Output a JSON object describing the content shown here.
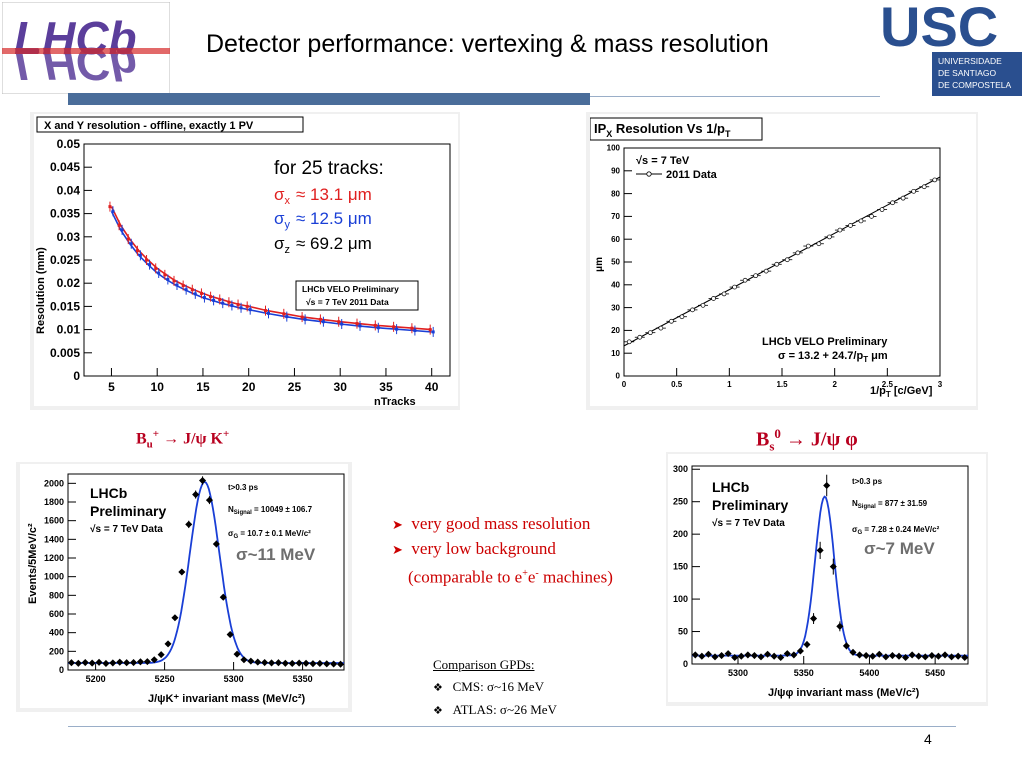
{
  "header": {
    "title": "Detector performance: vertexing & mass resolution",
    "lhcb_logo_text": "LHCb",
    "usc_logo": {
      "letters": "USC",
      "lines": [
        "UNIVERSIDADE",
        "DE SANTIAGO",
        "DE COMPOSTELA"
      ]
    },
    "colors": {
      "bar": "#4a6d9a",
      "usc_blue": "#2a4f8f",
      "decay_red": "#b8001f",
      "bullet_red": "#cc0000"
    }
  },
  "plots": {
    "xy": {
      "box_title": "X and Y resolution - offline, exactly 1 PV",
      "ylabel": "Resolution (mm)",
      "xlabel": "nTracks",
      "legend_title": "for 25 tracks:",
      "sx_label": "σ",
      "sx_sub": "x",
      "sx_value": "≈ 13.1 μm",
      "sy_label": "σ",
      "sy_sub": "y",
      "sy_value": "≈ 12.5 μm",
      "sz_label": "σ",
      "sz_sub": "z",
      "sz_value": "≈ 69.2 μm",
      "box_line1": "LHCb VELO Preliminary",
      "box_line2": "√s = 7 TeV 2011 Data"
    },
    "ip": {
      "box_title": "IP",
      "box_title_sub": "X",
      "box_title_rest": " Resolution Vs 1/p",
      "box_title_sub2": "T",
      "ylabel": "μm",
      "xlabel": "1/p",
      "xlabel_sub": "T",
      "xlabel_rest": " [c/GeV]",
      "legend1": "√s = 7 TeV",
      "legend2": "2011 Data",
      "note1": "LHCb VELO Preliminary",
      "note2": "σ = 13.2 + 24.7/p",
      "note2_sub": "T",
      "note2_rest": " μm"
    },
    "bu": {
      "decay_B": "B",
      "decay_sub": "u",
      "decay_sup": "+",
      "decay_rest": " → J/ψ K",
      "decay_sup2": "+",
      "ylabel": "Events/5MeV/c²",
      "xlabel": "J/ψK⁺ invariant mass (MeV/c²)",
      "lhcb1": "LHCb",
      "lhcb2": "Preliminary",
      "lhcb3": "√s = 7 TeV Data",
      "cut": "t>0.3 ps",
      "nsig_label": "N",
      "nsig_sub": "Signal",
      "nsig_value": " = 10049 ± 106.7",
      "sg_label": "σ",
      "sg_sub": "G",
      "sg_value": " = 10.7 ± 0.1 MeV/c²",
      "sigma_note": "σ~11 MeV"
    },
    "bs": {
      "decay_B": "B",
      "decay_sub": "s",
      "decay_sup": "0",
      "decay_rest": " → J/ψ φ",
      "ylabel": "",
      "xlabel": "J/ψφ invariant mass (MeV/c²)",
      "lhcb1": "LHCb",
      "lhcb2": "Preliminary",
      "lhcb3": "√s = 7 TeV Data",
      "cut": "t>0.3 ps",
      "nsig_label": "N",
      "nsig_sub": "Signal",
      "nsig_value": " = 877 ± 31.59",
      "sg_label": "σ",
      "sg_sub": "G",
      "sg_value": " = 7.28 ± 0.24 MeV/c²",
      "sigma_note": "σ~7 MeV"
    }
  },
  "bullets": {
    "items": [
      "very good mass resolution",
      "very low background"
    ],
    "continuation_pre": "(comparable to e",
    "continuation_sup1": "+",
    "continuation_mid": "e",
    "continuation_sup2": "-",
    "continuation_post": " machines)"
  },
  "comparison": {
    "heading": "Comparison GPDs:",
    "items": [
      "CMS: σ~16 MeV",
      "ATLAS: σ~26 MeV"
    ]
  },
  "footer": {
    "page_number": "4"
  },
  "chart_data": [
    {
      "type": "scatter",
      "title": "X and Y resolution - offline, exactly 1 PV",
      "xlabel": "nTracks",
      "ylabel": "Resolution (mm)",
      "xlim": [
        2,
        42
      ],
      "ylim": [
        0,
        0.05
      ],
      "xticks": [
        5,
        10,
        15,
        20,
        25,
        30,
        35,
        40
      ],
      "yticks": [
        0,
        0.005,
        0.01,
        0.015,
        0.02,
        0.025,
        0.03,
        0.035,
        0.04,
        0.045,
        0.05
      ],
      "grid": false,
      "series": [
        {
          "name": "σx",
          "color": "#e02020",
          "x": [
            5,
            6,
            7,
            8,
            9,
            10,
            11,
            12,
            13,
            14,
            15,
            16,
            17,
            18,
            19,
            20,
            22,
            24,
            26,
            28,
            30,
            32,
            34,
            36,
            38,
            40
          ],
          "values": [
            0.0365,
            0.0325,
            0.0295,
            0.027,
            0.025,
            0.0232,
            0.0218,
            0.0205,
            0.0195,
            0.0186,
            0.0178,
            0.0171,
            0.0165,
            0.0159,
            0.0154,
            0.015,
            0.0141,
            0.0134,
            0.0127,
            0.0122,
            0.0117,
            0.0113,
            0.0109,
            0.0106,
            0.0103,
            0.01
          ]
        },
        {
          "name": "σy",
          "color": "#1a3fd6",
          "x": [
            5,
            6,
            7,
            8,
            9,
            10,
            11,
            12,
            13,
            14,
            15,
            16,
            17,
            18,
            19,
            20,
            22,
            24,
            26,
            28,
            30,
            32,
            34,
            36,
            38,
            40
          ],
          "values": [
            0.0355,
            0.0315,
            0.0285,
            0.026,
            0.024,
            0.0222,
            0.0208,
            0.0196,
            0.0186,
            0.0177,
            0.0169,
            0.0163,
            0.0157,
            0.0152,
            0.0147,
            0.0143,
            0.0135,
            0.0128,
            0.0122,
            0.0117,
            0.0112,
            0.0108,
            0.0104,
            0.0101,
            0.0098,
            0.0095
          ]
        }
      ],
      "legend": [
        "for 25 tracks:",
        "σx ≈ 13.1 μm",
        "σy ≈ 12.5 μm",
        "σz ≈ 69.2 μm"
      ]
    },
    {
      "type": "line",
      "title": "IPX Resolution Vs 1/pT",
      "xlabel": "1/pT [c/GeV]",
      "ylabel": "μm",
      "xlim": [
        0,
        3
      ],
      "ylim": [
        0,
        100
      ],
      "xticks": [
        0,
        0.5,
        1,
        1.5,
        2,
        2.5,
        3
      ],
      "yticks": [
        0,
        10,
        20,
        30,
        40,
        50,
        60,
        70,
        80,
        90,
        100
      ],
      "grid": false,
      "fit": {
        "intercept": 13.2,
        "slope": 24.7
      },
      "series": [
        {
          "name": "2011 Data",
          "x": [
            0.05,
            0.15,
            0.25,
            0.35,
            0.45,
            0.55,
            0.65,
            0.75,
            0.85,
            0.95,
            1.05,
            1.15,
            1.25,
            1.35,
            1.45,
            1.55,
            1.65,
            1.75,
            1.85,
            1.95,
            2.05,
            2.15,
            2.25,
            2.35,
            2.45,
            2.55,
            2.65,
            2.75,
            2.85,
            2.95
          ],
          "values": [
            15,
            17,
            19,
            21,
            24,
            26,
            29,
            31,
            34,
            36,
            39,
            42,
            44,
            46,
            49,
            51,
            54,
            57,
            58,
            61,
            64,
            66,
            68,
            70,
            73,
            76,
            78,
            81,
            83,
            86
          ]
        }
      ]
    },
    {
      "type": "scatter",
      "title": "",
      "xlabel": "J/ψK⁺ invariant mass (MeV/c²)",
      "ylabel": "Events/5MeV/c²",
      "xlim": [
        5180,
        5380
      ],
      "ylim": [
        0,
        2100
      ],
      "xticks": [
        5200,
        5250,
        5300,
        5350
      ],
      "yticks": [
        0,
        200,
        400,
        600,
        800,
        1000,
        1200,
        1400,
        1600,
        1800,
        2000
      ],
      "grid": false,
      "fit": {
        "mean": 5279,
        "sigma": 10.7,
        "peak": 1940,
        "background": 75
      },
      "series": [
        {
          "name": "data",
          "x": [
            5182.5,
            5187.5,
            5192.5,
            5197.5,
            5202.5,
            5207.5,
            5212.5,
            5217.5,
            5222.5,
            5227.5,
            5232.5,
            5237.5,
            5242.5,
            5247.5,
            5252.5,
            5257.5,
            5262.5,
            5267.5,
            5272.5,
            5277.5,
            5282.5,
            5287.5,
            5292.5,
            5297.5,
            5302.5,
            5307.5,
            5312.5,
            5317.5,
            5322.5,
            5327.5,
            5332.5,
            5337.5,
            5342.5,
            5347.5,
            5352.5,
            5357.5,
            5362.5,
            5367.5,
            5372.5,
            5377.5
          ],
          "values": [
            78,
            72,
            80,
            74,
            82,
            70,
            76,
            84,
            78,
            80,
            88,
            90,
            110,
            165,
            280,
            560,
            1050,
            1560,
            1880,
            2030,
            1820,
            1350,
            780,
            380,
            170,
            110,
            95,
            85,
            80,
            76,
            78,
            72,
            70,
            74,
            72,
            68,
            70,
            66,
            64,
            62
          ]
        }
      ]
    },
    {
      "type": "scatter",
      "title": "",
      "xlabel": "J/ψφ invariant mass (MeV/c²)",
      "ylabel": "",
      "xlim": [
        5265,
        5475
      ],
      "ylim": [
        0,
        305
      ],
      "xticks": [
        5300,
        5350,
        5400,
        5450
      ],
      "yticks": [
        0,
        50,
        100,
        150,
        200,
        250,
        300
      ],
      "grid": false,
      "fit": {
        "mean": 5366,
        "sigma": 7.28,
        "peak": 245,
        "background": 13
      },
      "series": [
        {
          "name": "data",
          "x": [
            5267.5,
            5272.5,
            5277.5,
            5282.5,
            5287.5,
            5292.5,
            5297.5,
            5302.5,
            5307.5,
            5312.5,
            5317.5,
            5322.5,
            5327.5,
            5332.5,
            5337.5,
            5342.5,
            5347.5,
            5352.5,
            5357.5,
            5362.5,
            5367.5,
            5372.5,
            5377.5,
            5382.5,
            5387.5,
            5392.5,
            5397.5,
            5402.5,
            5407.5,
            5412.5,
            5417.5,
            5422.5,
            5427.5,
            5432.5,
            5437.5,
            5442.5,
            5447.5,
            5452.5,
            5457.5,
            5462.5,
            5467.5,
            5472.5
          ],
          "values": [
            14,
            12,
            15,
            11,
            13,
            16,
            10,
            12,
            14,
            13,
            11,
            15,
            12,
            10,
            16,
            14,
            20,
            30,
            70,
            175,
            275,
            150,
            58,
            28,
            18,
            14,
            13,
            12,
            15,
            11,
            13,
            12,
            10,
            14,
            12,
            11,
            13,
            12,
            14,
            11,
            12,
            10
          ]
        }
      ]
    }
  ]
}
